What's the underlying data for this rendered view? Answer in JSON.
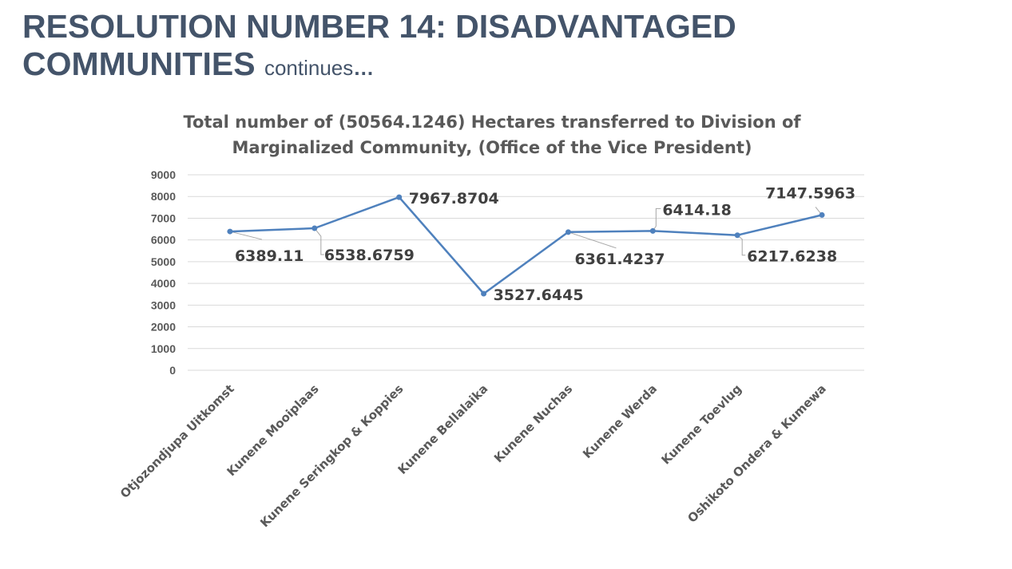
{
  "slide": {
    "title_line1": "RESOLUTION NUMBER 14: DISADVANTAGED",
    "title_line2": "COMMUNITIES",
    "title_suffix": "continues",
    "title_ellipsis": "…"
  },
  "chart_data": {
    "type": "line",
    "title": "Total number of (50564.1246) Hectares transferred to Division of Marginalized Community, (Office of the Vice President)",
    "title_lines": [
      "Total number of (50564.1246) Hectares transferred to Division of",
      "Marginalized Community, (Office of the Vice President)"
    ],
    "categories": [
      "Otjozondjupa Uitkomst",
      "Kunene Mooiplaas",
      "Kunene Seringkop & Koppies",
      "Kunene Bellalaika",
      "Kunene Nuchas",
      "Kunene Werda",
      "Kunene Toevlug",
      "Oshikoto Ondera & Kumewa"
    ],
    "series": [
      {
        "values": [
          6389.11,
          6538.6759,
          7967.8704,
          3527.6445,
          6361.4237,
          6414.18,
          6217.6238,
          7147.5963
        ]
      }
    ],
    "data_labels": [
      "6389.11",
      "6538.6759",
      "7967.8704",
      "3527.6445",
      "6361.4237",
      "6414.18",
      "6217.6238",
      "7147.5963"
    ],
    "ylim": [
      0,
      9000
    ],
    "yticks": [
      0,
      1000,
      2000,
      3000,
      4000,
      5000,
      6000,
      7000,
      8000,
      9000
    ],
    "grid": true,
    "legend": "none",
    "line_color": "#4f81bd",
    "grid_color": "#d9d9d9",
    "text_color": "#595959"
  }
}
